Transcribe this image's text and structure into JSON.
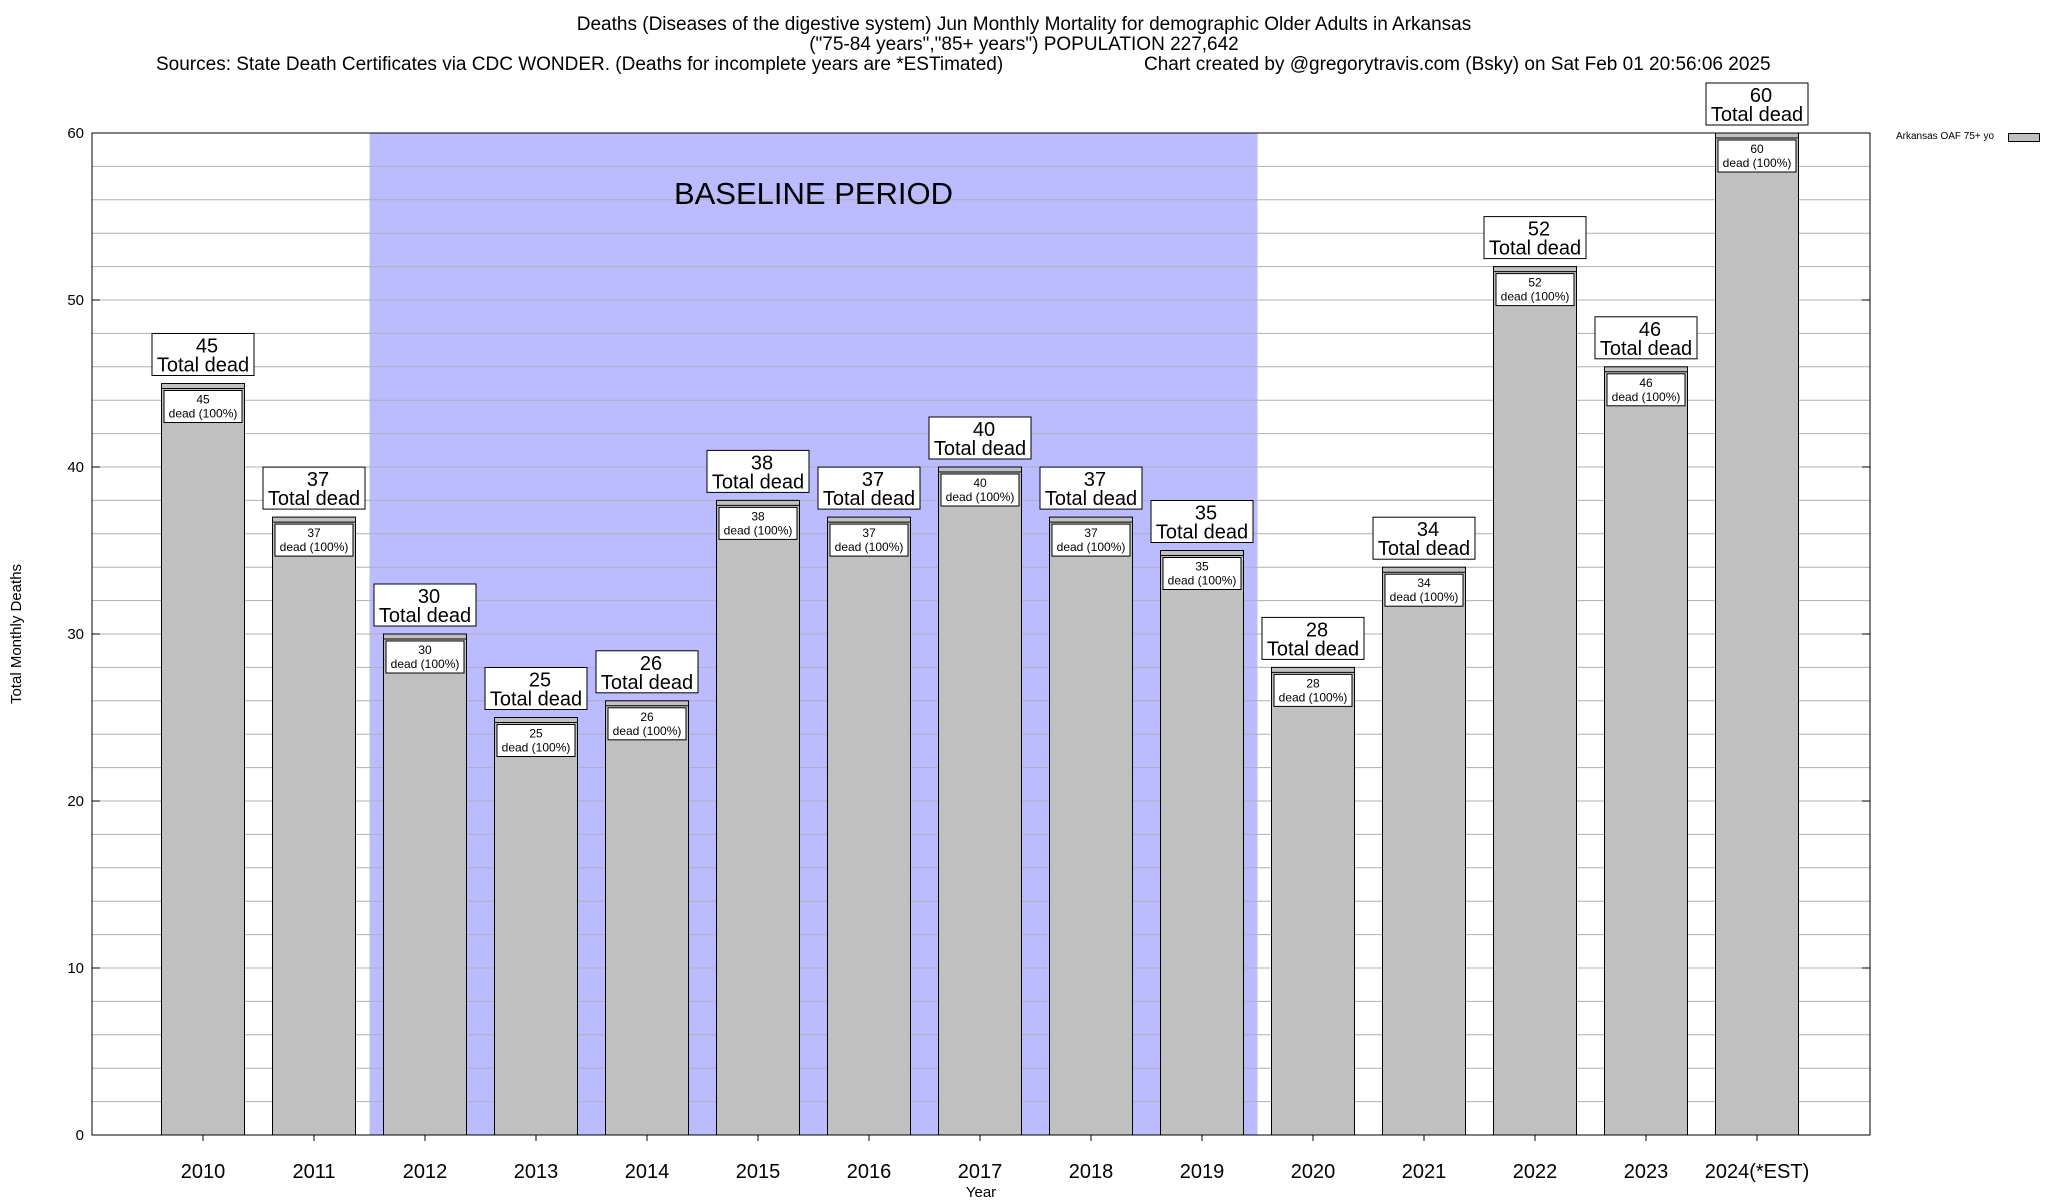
{
  "header": {
    "title_line1": "Deaths (Diseases of the digestive system) Jun Monthly Mortality for demographic Older Adults in Arkansas",
    "title_line2": "(\"75-84 years\",\"85+ years\") POPULATION 227,642",
    "sources": "Sources: State Death Certificates via CDC WONDER. (Deaths for incomplete years are *ESTimated)",
    "credit": "Chart created by @gregorytravis.com (Bsky) on Sat Feb 01 20:56:06 2025"
  },
  "legend": {
    "label": "Arkansas OAF 75+ yo",
    "placement": "top-right"
  },
  "colors": {
    "bar": "#c0c0c0",
    "baseline": "#bbbbff",
    "grid": "#b0b0b0"
  },
  "chart_data": {
    "type": "bar",
    "xlabel": "Year",
    "ylabel": "Total Monthly Deaths",
    "ylim": [
      0,
      60
    ],
    "yticks": [
      0,
      10,
      20,
      30,
      40,
      50,
      60
    ],
    "grid": true,
    "categories": [
      "2010",
      "2011",
      "2012",
      "2013",
      "2014",
      "2015",
      "2016",
      "2017",
      "2018",
      "2019",
      "2020",
      "2021",
      "2022",
      "2023",
      "2024(*EST)"
    ],
    "series": [
      {
        "name": "Arkansas OAF 75+ yo",
        "values": [
          45,
          37,
          30,
          25,
          26,
          38,
          37,
          40,
          37,
          35,
          28,
          34,
          52,
          46,
          60
        ]
      }
    ],
    "outer_label_suffix": "Total dead",
    "inner_label_suffix": "dead (100%)",
    "baseline": {
      "label": "BASELINE PERIOD",
      "from": "2012",
      "to": "2019"
    }
  }
}
